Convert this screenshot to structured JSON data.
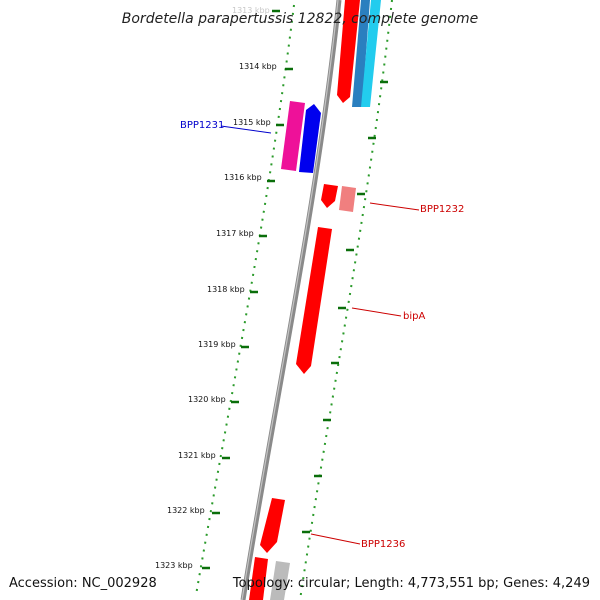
{
  "title": "Bordetella parapertussis 12822, complete genome",
  "footer": {
    "accession": "Accession: NC_002928",
    "summary": "Topology: circular; Length: 4,773,551 bp; Genes: 4,249"
  },
  "ruler": {
    "labels": [
      "1313 kbp",
      "1314 kbp",
      "1315 kbp",
      "1316 kbp",
      "1317 kbp",
      "1318 kbp",
      "1319 kbp",
      "1320 kbp",
      "1321 kbp",
      "1322 kbp",
      "1323 kbp"
    ]
  },
  "genes": {
    "bpp1231": "BPP1231",
    "bpp1232": "BPP1232",
    "bipa": "bipA",
    "bpp1236": "BPP1236"
  },
  "colors": {
    "title": "#222222",
    "backbone": "#8a8a8a",
    "tick": "#0a6e0a",
    "gene_forward": "#ff0000",
    "gene_pale": "#f07f7f",
    "gene_magenta": "#ee1199",
    "gene_blue": "#0000ee",
    "gene_teal": "#2a7fbf",
    "gene_cyan": "#22ccee",
    "gene_grey": "#bbbbbb",
    "label_blue": "#0000cc",
    "label_red": "#cc0000"
  }
}
